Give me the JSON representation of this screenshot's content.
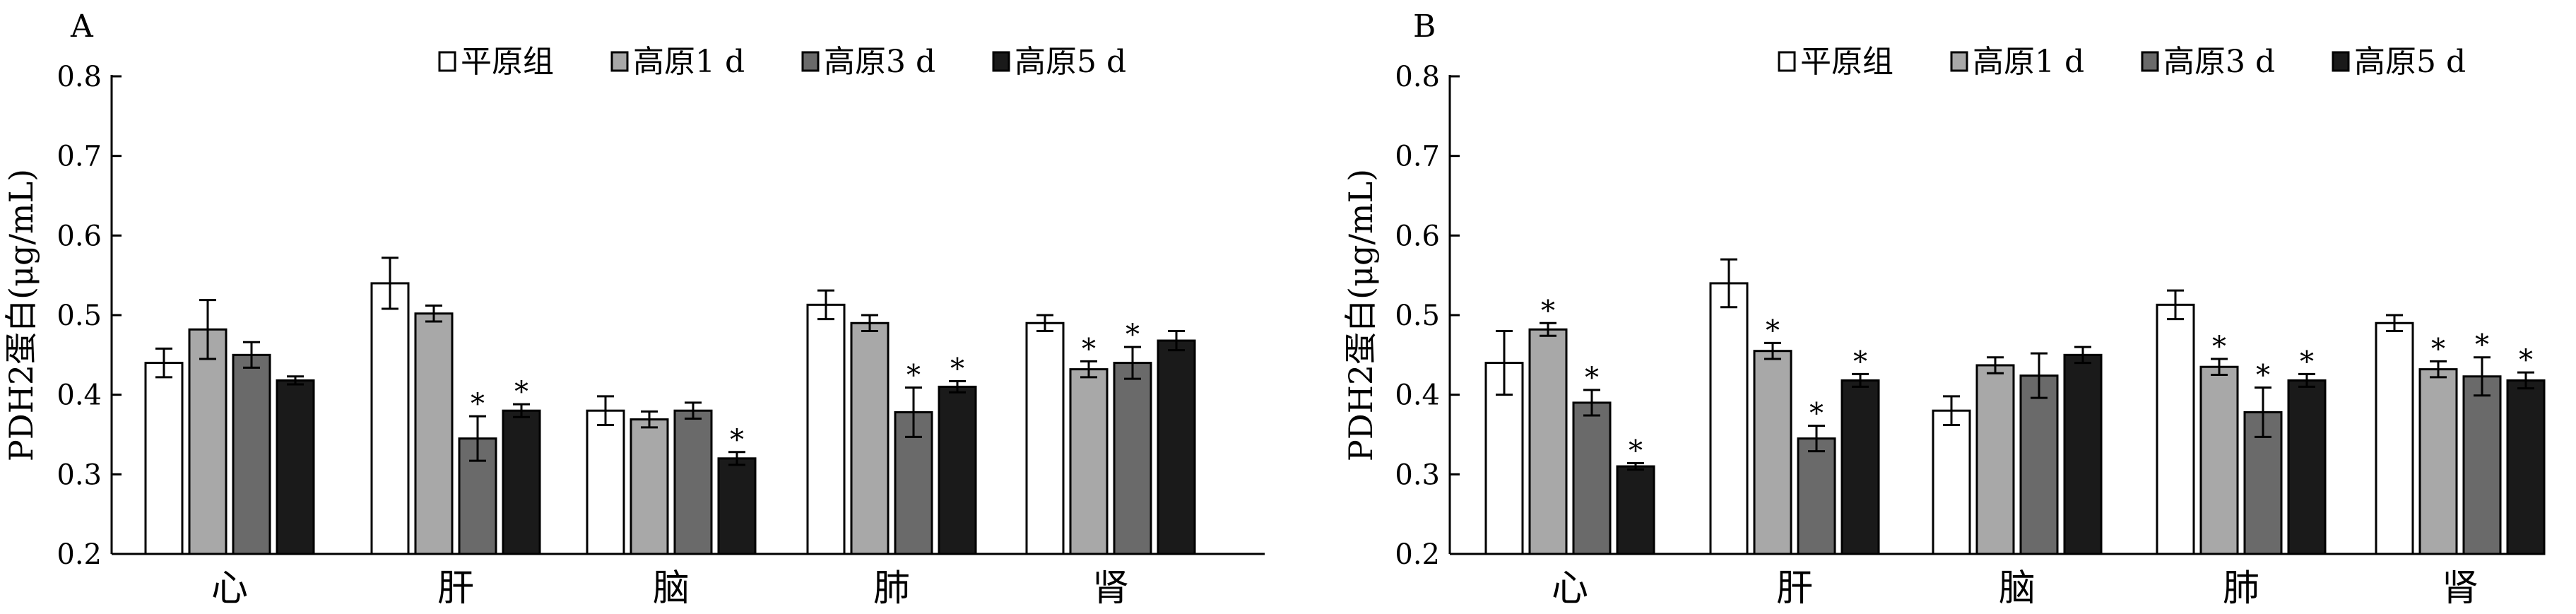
{
  "chart_data": [
    {
      "type": "bar",
      "panel": "A",
      "ylabel": "PDH2蛋白(μg/mL)",
      "xlabel": "",
      "ylim": [
        0.2,
        0.8
      ],
      "yticks": [
        "0.2",
        "0.3",
        "0.4",
        "0.5",
        "0.6",
        "0.7",
        "0.8"
      ],
      "categories": [
        "心",
        "肝",
        "脑",
        "肺",
        "肾"
      ],
      "legend_position": "top-right",
      "series": [
        {
          "name": "平原组",
          "color": "#ffffff",
          "values": [
            0.44,
            0.54,
            0.38,
            0.513,
            0.49
          ],
          "errors": [
            0.018,
            0.032,
            0.018,
            0.018,
            0.01
          ],
          "sig": [
            false,
            false,
            false,
            false,
            false
          ]
        },
        {
          "name": "高原1 d",
          "color": "#a8a8a8",
          "values": [
            0.482,
            0.502,
            0.369,
            0.49,
            0.432
          ],
          "errors": [
            0.037,
            0.01,
            0.01,
            0.01,
            0.01
          ],
          "sig": [
            false,
            false,
            false,
            false,
            true
          ]
        },
        {
          "name": "高原3 d",
          "color": "#6a6a6a",
          "values": [
            0.45,
            0.345,
            0.38,
            0.378,
            0.44
          ],
          "errors": [
            0.016,
            0.028,
            0.01,
            0.031,
            0.02
          ],
          "sig": [
            false,
            true,
            false,
            true,
            true
          ]
        },
        {
          "name": "高原5 d",
          "color": "#1a1a1a",
          "values": [
            0.418,
            0.38,
            0.32,
            0.41,
            0.468
          ],
          "errors": [
            0.005,
            0.008,
            0.008,
            0.007,
            0.012
          ],
          "sig": [
            false,
            true,
            true,
            true,
            false
          ]
        }
      ],
      "sig_marker": "*"
    },
    {
      "type": "bar",
      "panel": "B",
      "ylabel": "PDH2蛋白(μg/mL)",
      "xlabel": "",
      "ylim": [
        0.2,
        0.8
      ],
      "yticks": [
        "0.2",
        "0.3",
        "0.4",
        "0.5",
        "0.6",
        "0.7",
        "0.8"
      ],
      "categories": [
        "心",
        "肝",
        "脑",
        "肺",
        "肾"
      ],
      "legend_position": "top-right",
      "series": [
        {
          "name": "平原组",
          "color": "#ffffff",
          "values": [
            0.44,
            0.54,
            0.38,
            0.513,
            0.49
          ],
          "errors": [
            0.04,
            0.03,
            0.018,
            0.018,
            0.01
          ],
          "sig": [
            false,
            false,
            false,
            false,
            false
          ]
        },
        {
          "name": "高原1 d",
          "color": "#a8a8a8",
          "values": [
            0.482,
            0.455,
            0.437,
            0.435,
            0.432
          ],
          "errors": [
            0.008,
            0.01,
            0.01,
            0.01,
            0.01
          ],
          "sig": [
            true,
            true,
            false,
            true,
            true
          ]
        },
        {
          "name": "高原3 d",
          "color": "#6a6a6a",
          "values": [
            0.39,
            0.345,
            0.424,
            0.378,
            0.423
          ],
          "errors": [
            0.016,
            0.016,
            0.028,
            0.031,
            0.024
          ],
          "sig": [
            true,
            true,
            false,
            true,
            true
          ]
        },
        {
          "name": "高原5 d",
          "color": "#1a1a1a",
          "values": [
            0.31,
            0.418,
            0.45,
            0.418,
            0.418
          ],
          "errors": [
            0.004,
            0.008,
            0.01,
            0.008,
            0.01
          ],
          "sig": [
            true,
            true,
            false,
            true,
            true
          ]
        }
      ],
      "sig_marker": "*"
    }
  ]
}
